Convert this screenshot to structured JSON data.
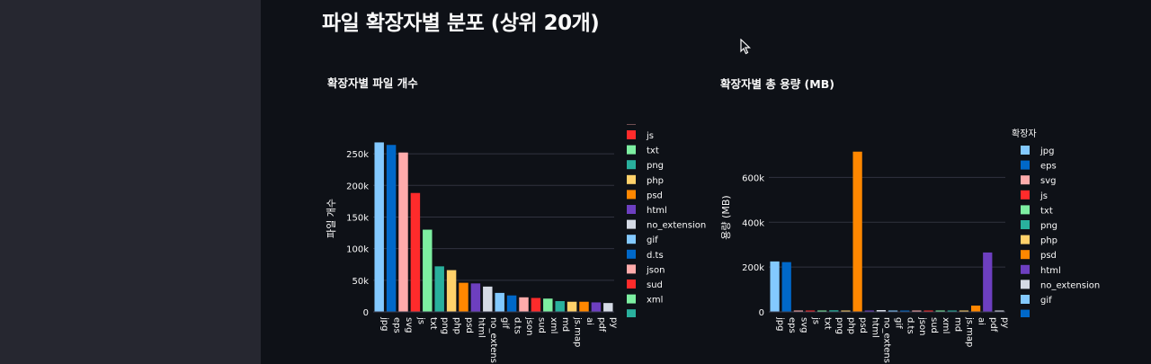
{
  "page": {
    "title": "파일 확장자별 분포 (상위 20개)"
  },
  "chart_data": [
    {
      "type": "bar",
      "title": "확장자별 파일 개수",
      "xlabel": "",
      "ylabel": "파일 개수",
      "ylim": [
        0,
        280000
      ],
      "yticks": [
        0,
        50000,
        100000,
        150000,
        200000,
        250000
      ],
      "ytick_labels": [
        "0",
        "50k",
        "100k",
        "150k",
        "200k",
        "250k"
      ],
      "grid": true,
      "legend_position": "right",
      "legend_title": "",
      "categories": [
        "jpg",
        "eps",
        "svg",
        "js",
        "txt",
        "png",
        "php",
        "psd",
        "html",
        "no_extension",
        "gif",
        "d.ts",
        "json",
        "sud",
        "xml",
        "md",
        "js.map",
        "ai",
        "pdf",
        "py"
      ],
      "values": [
        268000,
        264000,
        252000,
        188000,
        130000,
        72000,
        66000,
        46000,
        45000,
        40000,
        30000,
        26000,
        23000,
        22000,
        21000,
        17000,
        16000,
        16000,
        15000,
        14000
      ],
      "colors": [
        "#83c9ff",
        "#0068c9",
        "#ffabab",
        "#ff2b2b",
        "#7defa1",
        "#29b09d",
        "#ffd16a",
        "#ff8700",
        "#6d3fc0",
        "#d5dae5",
        "#83c9ff",
        "#0068c9",
        "#ffabab",
        "#ff2b2b",
        "#7defa1",
        "#29b09d",
        "#ffd16a",
        "#ff8700",
        "#6d3fc0",
        "#d5dae5"
      ],
      "legend_items": [
        "js",
        "txt",
        "png",
        "php",
        "psd",
        "html",
        "no_extension",
        "gif",
        "d.ts",
        "json",
        "sud",
        "xml"
      ]
    },
    {
      "type": "bar",
      "title": "확장자별 총 용량 (MB)",
      "xlabel": "",
      "ylabel": "용량 (MB)",
      "ylim": [
        0,
        750000
      ],
      "yticks": [
        0,
        200000,
        400000,
        600000
      ],
      "ytick_labels": [
        "0",
        "200k",
        "400k",
        "600k"
      ],
      "grid": true,
      "legend_position": "right",
      "legend_title": "확장자",
      "categories": [
        "jpg",
        "eps",
        "svg",
        "js",
        "txt",
        "png",
        "php",
        "psd",
        "html",
        "no_extension",
        "gif",
        "d.ts",
        "json",
        "sud",
        "xml",
        "md",
        "js.map",
        "ai",
        "pdf",
        "py"
      ],
      "values": [
        225000,
        222000,
        6000,
        3000,
        2000,
        7000,
        1000,
        715000,
        1000,
        8000,
        3000,
        2000,
        1000,
        1000,
        1000,
        1000,
        1000,
        28000,
        265000,
        1000
      ],
      "colors": [
        "#83c9ff",
        "#0068c9",
        "#ffabab",
        "#ff2b2b",
        "#7defa1",
        "#29b09d",
        "#ffd16a",
        "#ff8700",
        "#6d3fc0",
        "#d5dae5",
        "#83c9ff",
        "#0068c9",
        "#ffabab",
        "#ff2b2b",
        "#7defa1",
        "#29b09d",
        "#ffd16a",
        "#ff8700",
        "#6d3fc0",
        "#d5dae5"
      ],
      "legend_items": [
        "jpg",
        "eps",
        "svg",
        "js",
        "txt",
        "png",
        "php",
        "psd",
        "html",
        "no_extension",
        "gif"
      ]
    }
  ]
}
